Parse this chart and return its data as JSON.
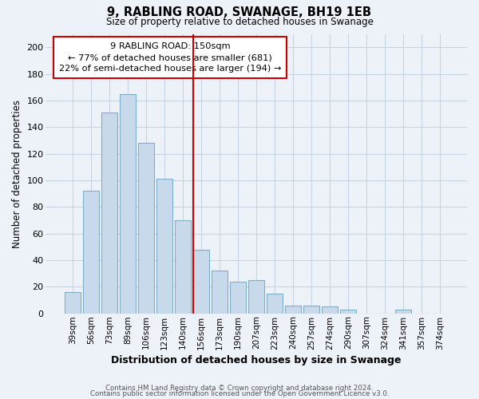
{
  "title": "9, RABLING ROAD, SWANAGE, BH19 1EB",
  "subtitle": "Size of property relative to detached houses in Swanage",
  "xlabel": "Distribution of detached houses by size in Swanage",
  "ylabel": "Number of detached properties",
  "bar_labels": [
    "39sqm",
    "56sqm",
    "73sqm",
    "89sqm",
    "106sqm",
    "123sqm",
    "140sqm",
    "156sqm",
    "173sqm",
    "190sqm",
    "207sqm",
    "223sqm",
    "240sqm",
    "257sqm",
    "274sqm",
    "290sqm",
    "307sqm",
    "324sqm",
    "341sqm",
    "357sqm",
    "374sqm"
  ],
  "bar_values": [
    16,
    92,
    151,
    165,
    128,
    101,
    70,
    48,
    32,
    24,
    25,
    15,
    6,
    6,
    5,
    3,
    0,
    0,
    3,
    0,
    0
  ],
  "bar_color": "#c9d9ec",
  "bar_edge_color": "#7dafc8",
  "vline_color": "#cc0000",
  "ylim": [
    0,
    210
  ],
  "yticks": [
    0,
    20,
    40,
    60,
    80,
    100,
    120,
    140,
    160,
    180,
    200
  ],
  "annotation_line0": "9 RABLING ROAD: 150sqm",
  "annotation_line1": "← 77% of detached houses are smaller (681)",
  "annotation_line2": "22% of semi-detached houses are larger (194) →",
  "annotation_box_color": "#ffffff",
  "annotation_box_edge": "#cc0000",
  "footer_line1": "Contains HM Land Registry data © Crown copyright and database right 2024.",
  "footer_line2": "Contains public sector information licensed under the Open Government Licence v3.0.",
  "grid_color": "#c8d4e4",
  "background_color": "#edf2f9"
}
